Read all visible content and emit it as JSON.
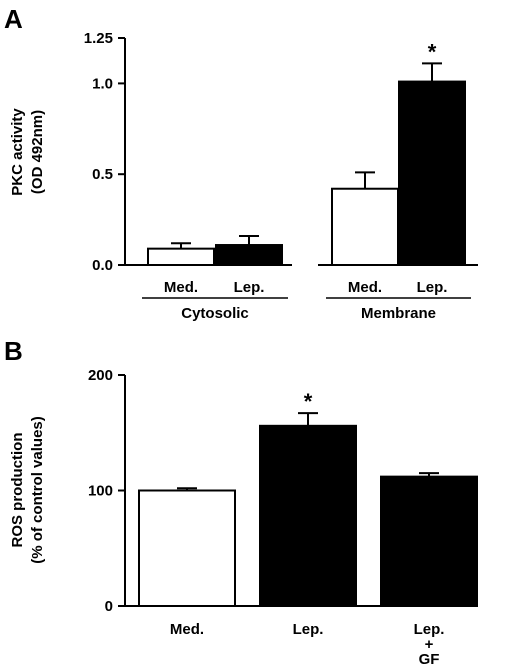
{
  "chart_data": [
    {
      "panel": "A",
      "type": "bar",
      "ylabel_lines": [
        "PKC activity",
        "(OD 492nm)"
      ],
      "ylim": [
        0,
        1.25
      ],
      "yticks": [
        0.0,
        0.5,
        1.0,
        1.25
      ],
      "ytick_labels": [
        "0.0",
        "0.5",
        "1.0",
        "1.25"
      ],
      "groups": [
        {
          "label": "Cytosolic",
          "bars": [
            {
              "label": "Med.",
              "value": 0.09,
              "error": 0.03,
              "fill": "#ffffff",
              "significant": false
            },
            {
              "label": "Lep.",
              "value": 0.11,
              "error": 0.05,
              "fill": "#000000",
              "significant": false
            }
          ]
        },
        {
          "label": "Membrane",
          "bars": [
            {
              "label": "Med.",
              "value": 0.42,
              "error": 0.09,
              "fill": "#ffffff",
              "significant": false
            },
            {
              "label": "Lep.",
              "value": 1.01,
              "error": 0.1,
              "fill": "#000000",
              "significant": true
            }
          ]
        }
      ],
      "significance_marker": "*"
    },
    {
      "panel": "B",
      "type": "bar",
      "ylabel_lines": [
        "ROS production",
        "(% of control values)"
      ],
      "ylim": [
        0,
        200
      ],
      "yticks": [
        0,
        100,
        200
      ],
      "ytick_labels": [
        "0",
        "100",
        "200"
      ],
      "bars": [
        {
          "label_lines": [
            "Med."
          ],
          "value": 100,
          "error": 2,
          "fill": "#ffffff",
          "significant": false
        },
        {
          "label_lines": [
            "Lep."
          ],
          "value": 156,
          "error": 11,
          "fill": "#000000",
          "significant": true
        },
        {
          "label_lines": [
            "Lep.",
            "+",
            "GF"
          ],
          "value": 112,
          "error": 3,
          "fill": "#000000",
          "significant": false
        }
      ],
      "significance_marker": "*"
    }
  ]
}
